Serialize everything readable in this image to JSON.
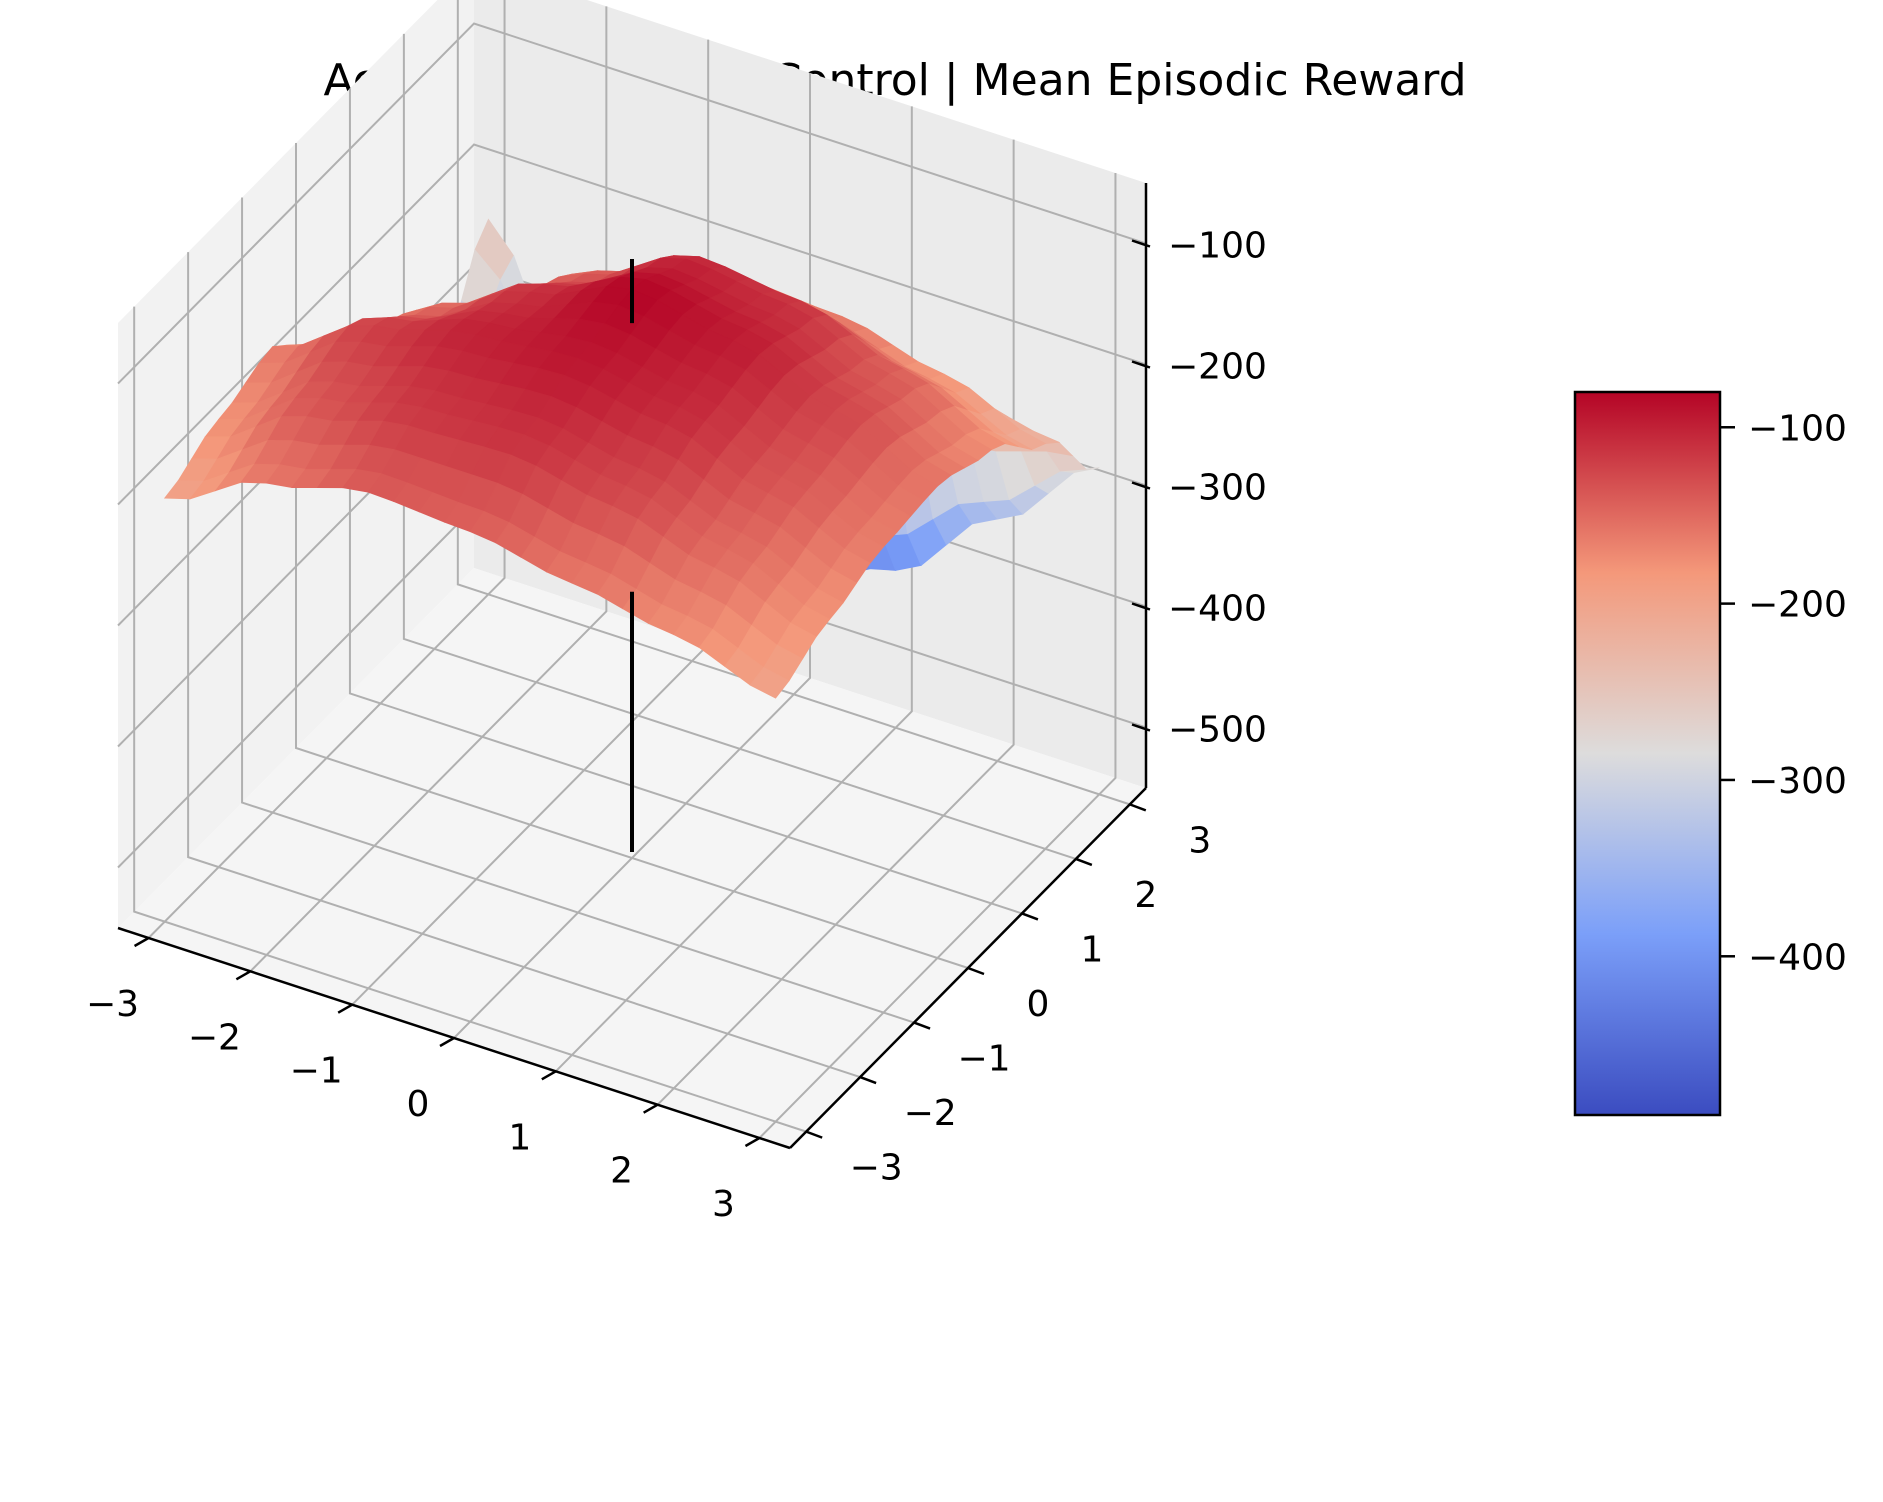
{
  "chart_data": {
    "type": "surface3d",
    "title": "Acrobot-v1 | Classic Control | Mean Episodic Reward",
    "xlabel": "",
    "ylabel": "",
    "zlabel": "",
    "x_ticks": [
      "−3",
      "−2",
      "−1",
      "0",
      "1",
      "2",
      "3"
    ],
    "y_ticks": [
      "−3",
      "−2",
      "−1",
      "0",
      "1",
      "2",
      "3"
    ],
    "z_ticks": [
      "−100",
      "−200",
      "−300",
      "−400",
      "−500"
    ],
    "colorbar_ticks": [
      "−100",
      "−200",
      "−300",
      "−400"
    ],
    "xlim": [
      -3.3,
      3.3
    ],
    "ylim": [
      -3.3,
      3.3
    ],
    "zlim": [
      -550,
      -50
    ],
    "colorbar_range": [
      -490,
      -80
    ],
    "colormap": "coolwarm",
    "grid": true,
    "peak": {
      "x": 0,
      "y": 0,
      "z": -80
    },
    "grid_x": [
      -3,
      -2,
      -1,
      0,
      1,
      2,
      3
    ],
    "grid_y": [
      -3,
      -2,
      -1,
      0,
      1,
      2,
      3
    ],
    "z_values": [
      [
        -200,
        -180,
        -165,
        -230,
        -290,
        -330,
        -240
      ],
      [
        -160,
        -135,
        -120,
        -150,
        -200,
        -270,
        -390
      ],
      [
        -140,
        -115,
        -100,
        -110,
        -140,
        -195,
        -430
      ],
      [
        -145,
        -110,
        -92,
        -80,
        -100,
        -160,
        -455
      ],
      [
        -160,
        -125,
        -105,
        -95,
        -110,
        -165,
        -420
      ],
      [
        -175,
        -150,
        -135,
        -125,
        -140,
        -185,
        -350
      ],
      [
        -200,
        -180,
        -165,
        -160,
        -175,
        -215,
        -280
      ]
    ]
  }
}
